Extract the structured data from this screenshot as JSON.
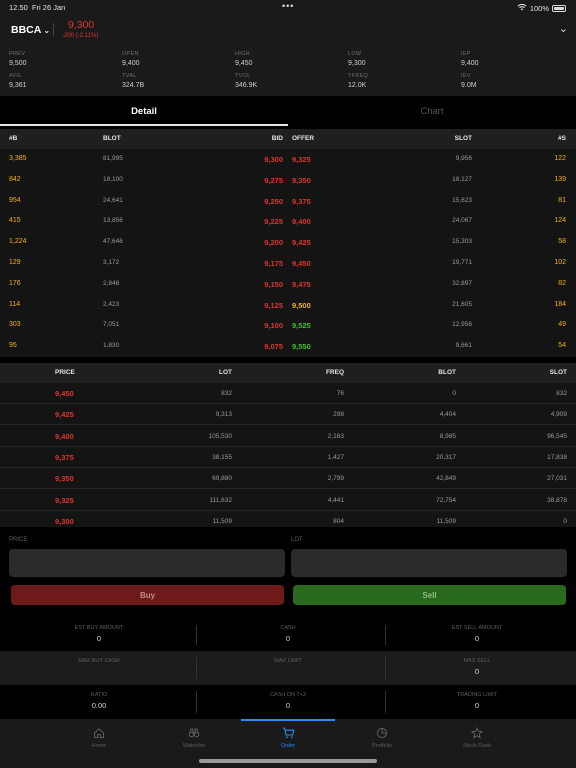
{
  "status": {
    "time": "12.50",
    "date": "Fri 26 Jan",
    "battery": "100%"
  },
  "header": {
    "ticker": "BBCA",
    "last": "9,300",
    "change": "-200 (-2.11%)"
  },
  "stats": [
    {
      "label": "PREV",
      "value": "9,500",
      "color": "yellow"
    },
    {
      "label": "OPEN",
      "value": "9,400",
      "color": "yellow"
    },
    {
      "label": "HIGH",
      "value": "9,450",
      "color": "green"
    },
    {
      "label": "LOW",
      "value": "9,300",
      "color": "red"
    },
    {
      "label": "IEP",
      "value": "9,400",
      "color": "plain"
    },
    {
      "label": "AVG",
      "value": "9,361",
      "color": "green"
    },
    {
      "label": "TVAL",
      "value": "324.7B",
      "color": "plain"
    },
    {
      "label": "TVOL",
      "value": "346.9K",
      "color": "plain"
    },
    {
      "label": "TFREQ",
      "value": "12.0K",
      "color": "plain"
    },
    {
      "label": "IEV",
      "value": "9.0M",
      "color": "plain"
    }
  ],
  "tabs": {
    "detail": "Detail",
    "chart": "Chart"
  },
  "orderbook": {
    "headers": {
      "b": "#B",
      "blot": "BLOT",
      "bid": "BID",
      "offer": "OFFER",
      "slot": "SLOT",
      "s": "#S"
    },
    "rows": [
      {
        "b": "3,385",
        "blot": "81,995",
        "bid": "9,300",
        "offer": "9,325",
        "slot": "9,956",
        "s": "122",
        "oc": "red"
      },
      {
        "b": "842",
        "blot": "18,100",
        "bid": "9,275",
        "offer": "9,350",
        "slot": "18,127",
        "s": "139",
        "oc": "red"
      },
      {
        "b": "954",
        "blot": "24,641",
        "bid": "9,250",
        "offer": "9,375",
        "slot": "15,623",
        "s": "81",
        "oc": "red"
      },
      {
        "b": "415",
        "blot": "13,856",
        "bid": "9,225",
        "offer": "9,400",
        "slot": "24,067",
        "s": "124",
        "oc": "red"
      },
      {
        "b": "1,224",
        "blot": "47,646",
        "bid": "9,200",
        "offer": "9,425",
        "slot": "15,303",
        "s": "58",
        "oc": "red"
      },
      {
        "b": "129",
        "blot": "3,172",
        "bid": "9,175",
        "offer": "9,450",
        "slot": "19,771",
        "s": "102",
        "oc": "red"
      },
      {
        "b": "176",
        "blot": "2,846",
        "bid": "9,150",
        "offer": "9,475",
        "slot": "32,897",
        "s": "82",
        "oc": "red"
      },
      {
        "b": "114",
        "blot": "2,423",
        "bid": "9,125",
        "offer": "9,500",
        "slot": "21,605",
        "s": "184",
        "oc": "yellow"
      },
      {
        "b": "303",
        "blot": "7,051",
        "bid": "9,100",
        "offer": "9,525",
        "slot": "12,956",
        "s": "49",
        "oc": "green"
      },
      {
        "b": "95",
        "blot": "1,830",
        "bid": "9,075",
        "offer": "9,550",
        "slot": "9,661",
        "s": "54",
        "oc": "green"
      }
    ]
  },
  "trades": {
    "headers": {
      "price": "PRICE",
      "lot": "LOT",
      "freq": "FREQ",
      "blot": "BLOT",
      "slot": "SLOT"
    },
    "rows": [
      {
        "price": "9,450",
        "lot": "832",
        "freq": "76",
        "blot": "0",
        "slot": "832"
      },
      {
        "price": "9,425",
        "lot": "9,313",
        "freq": "298",
        "blot": "4,404",
        "slot": "4,909"
      },
      {
        "price": "9,400",
        "lot": "105,530",
        "freq": "2,163",
        "blot": "8,985",
        "slot": "96,545"
      },
      {
        "price": "9,375",
        "lot": "38,155",
        "freq": "1,427",
        "blot": "20,317",
        "slot": "17,838"
      },
      {
        "price": "9,350",
        "lot": "69,880",
        "freq": "2,799",
        "blot": "42,849",
        "slot": "27,031"
      },
      {
        "price": "9,325",
        "lot": "111,632",
        "freq": "4,441",
        "blot": "72,754",
        "slot": "38,878"
      },
      {
        "price": "9,300",
        "lot": "11,509",
        "freq": "804",
        "blot": "11,509",
        "slot": "0"
      }
    ]
  },
  "form": {
    "price_label": "PRICE",
    "lot_label": "LOT",
    "buy": "Buy",
    "sell": "Sell"
  },
  "info": {
    "est_buy_label": "EST BUY AMOUNT",
    "est_buy": "0",
    "cash_label": "CASH",
    "cash": "0",
    "est_sell_label": "EST SELL AMOUNT",
    "est_sell": "0",
    "max_buy_cash_label": "MAX BUY CASH",
    "max_limit_label": "MAX LIMIT",
    "max_sell_label": "MAX SELL",
    "max_sell": "0",
    "ratio_label": "RATIO",
    "ratio": "0.00",
    "cash_t2_label": "CASH ON T+2",
    "cash_t2": "0",
    "trading_limit_label": "TRADING LIMIT",
    "trading_limit": "0"
  },
  "nav": {
    "home": "Home",
    "watchlist": "Watchlist",
    "order": "Order",
    "portfolio": "Portfolio",
    "stock_rank": "Stock Rank"
  },
  "colors": {
    "red": "#e0332f",
    "green": "#3fbf2a",
    "yellow": "#f0b419",
    "accent": "#2f8bef"
  }
}
